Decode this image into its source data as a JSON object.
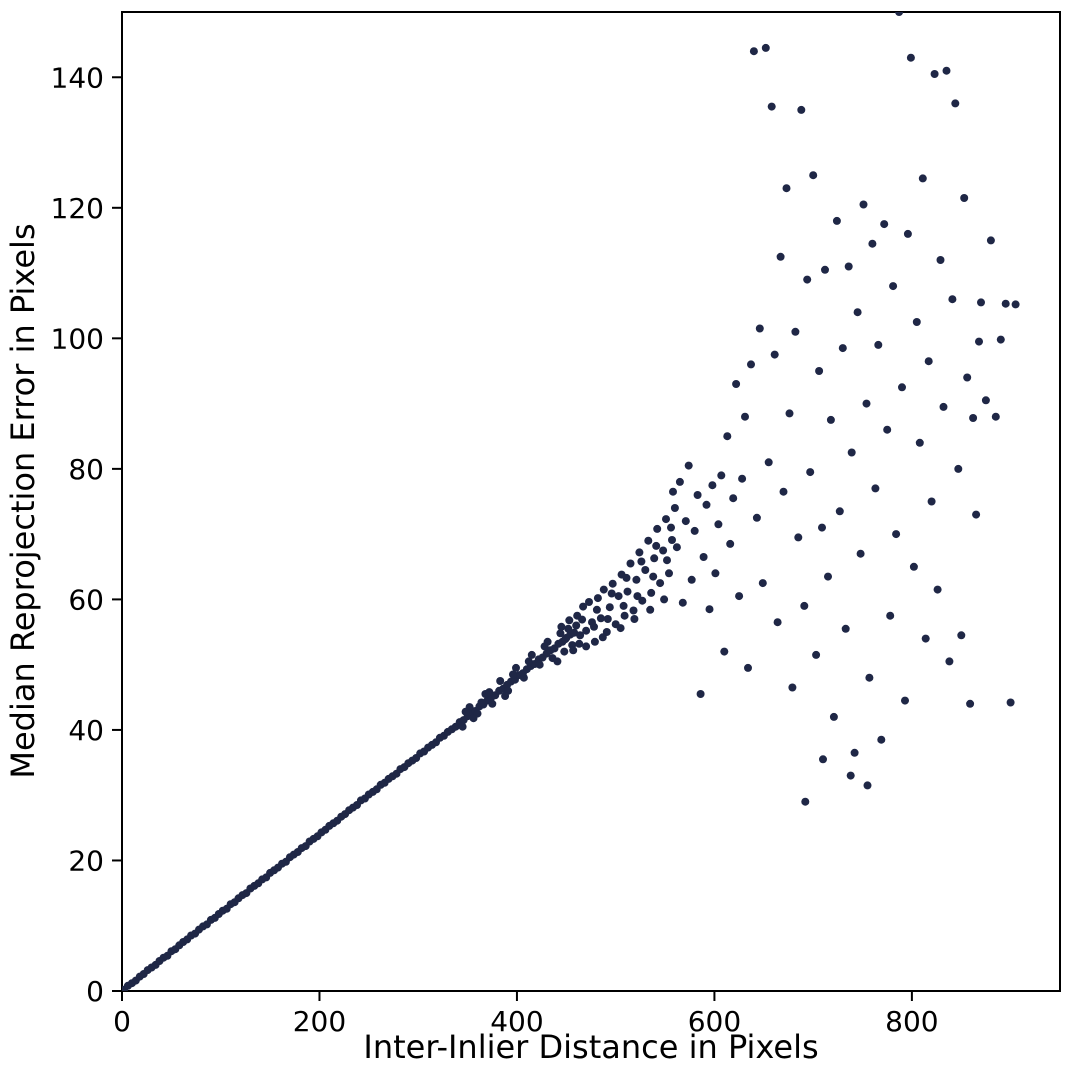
{
  "chart_data": {
    "type": "scatter",
    "title": "",
    "xlabel": "Inter-Inlier Distance in Pixels",
    "ylabel": "Median Reprojection Error in Pixels",
    "xlim": [
      0,
      950
    ],
    "ylim": [
      0,
      150
    ],
    "x_ticks": [
      0,
      200,
      400,
      600,
      800
    ],
    "y_ticks": [
      0,
      20,
      40,
      60,
      80,
      100,
      120,
      140
    ],
    "grid": false,
    "legend": null,
    "marker_color": "#1f2746",
    "marker_radius": 4,
    "axis_color": "#000000",
    "points": [
      [
        2,
        0.2
      ],
      [
        6,
        0.8
      ],
      [
        10,
        1.2
      ],
      [
        14,
        1.6
      ],
      [
        18,
        2.2
      ],
      [
        22,
        2.6
      ],
      [
        26,
        3.2
      ],
      [
        30,
        3.6
      ],
      [
        34,
        4.0
      ],
      [
        38,
        4.6
      ],
      [
        42,
        5.1
      ],
      [
        46,
        5.4
      ],
      [
        50,
        6.1
      ],
      [
        54,
        6.4
      ],
      [
        58,
        7.0
      ],
      [
        62,
        7.5
      ],
      [
        66,
        7.9
      ],
      [
        70,
        8.5
      ],
      [
        74,
        8.8
      ],
      [
        78,
        9.4
      ],
      [
        82,
        9.9
      ],
      [
        86,
        10.2
      ],
      [
        90,
        10.9
      ],
      [
        94,
        11.2
      ],
      [
        98,
        11.8
      ],
      [
        102,
        12.3
      ],
      [
        106,
        12.6
      ],
      [
        110,
        13.3
      ],
      [
        114,
        13.6
      ],
      [
        118,
        14.2
      ],
      [
        122,
        14.7
      ],
      [
        126,
        15.0
      ],
      [
        130,
        15.7
      ],
      [
        134,
        16.1
      ],
      [
        138,
        16.5
      ],
      [
        142,
        17.1
      ],
      [
        146,
        17.4
      ],
      [
        150,
        18.1
      ],
      [
        154,
        18.5
      ],
      [
        158,
        18.9
      ],
      [
        162,
        19.5
      ],
      [
        166,
        19.8
      ],
      [
        170,
        20.5
      ],
      [
        174,
        20.9
      ],
      [
        178,
        21.3
      ],
      [
        182,
        21.9
      ],
      [
        186,
        22.2
      ],
      [
        190,
        22.9
      ],
      [
        194,
        23.3
      ],
      [
        198,
        23.7
      ],
      [
        202,
        24.3
      ],
      [
        206,
        24.7
      ],
      [
        210,
        25.3
      ],
      [
        214,
        25.7
      ],
      [
        218,
        26.1
      ],
      [
        222,
        26.7
      ],
      [
        226,
        27.1
      ],
      [
        230,
        27.7
      ],
      [
        234,
        28.1
      ],
      [
        238,
        28.5
      ],
      [
        242,
        29.2
      ],
      [
        246,
        29.5
      ],
      [
        250,
        30.1
      ],
      [
        254,
        30.5
      ],
      [
        258,
        30.9
      ],
      [
        262,
        31.6
      ],
      [
        266,
        31.9
      ],
      [
        270,
        32.5
      ],
      [
        274,
        32.9
      ],
      [
        278,
        33.3
      ],
      [
        282,
        34.0
      ],
      [
        286,
        34.3
      ],
      [
        290,
        34.9
      ],
      [
        294,
        35.3
      ],
      [
        298,
        35.7
      ],
      [
        302,
        36.4
      ],
      [
        306,
        36.7
      ],
      [
        310,
        37.3
      ],
      [
        314,
        37.7
      ],
      [
        318,
        38.1
      ],
      [
        322,
        38.8
      ],
      [
        326,
        39.1
      ],
      [
        330,
        39.7
      ],
      [
        334,
        40.1
      ],
      [
        338,
        40.5
      ],
      [
        342,
        41.2
      ],
      [
        346,
        41.5
      ],
      [
        350,
        42.1
      ],
      [
        354,
        42.6
      ],
      [
        358,
        42.9
      ],
      [
        362,
        43.6
      ],
      [
        366,
        43.9
      ],
      [
        370,
        44.5
      ],
      [
        374,
        45.0
      ],
      [
        378,
        45.3
      ],
      [
        382,
        46.0
      ],
      [
        386,
        46.3
      ],
      [
        390,
        46.9
      ],
      [
        394,
        47.4
      ],
      [
        398,
        47.7
      ],
      [
        402,
        48.4
      ],
      [
        406,
        48.7
      ],
      [
        410,
        49.3
      ],
      [
        414,
        49.8
      ],
      [
        418,
        50.1
      ],
      [
        422,
        50.8
      ],
      [
        426,
        51.1
      ],
      [
        430,
        51.7
      ],
      [
        434,
        52.2
      ],
      [
        438,
        52.5
      ],
      [
        442,
        53.2
      ],
      [
        446,
        53.5
      ],
      [
        450,
        54.1
      ],
      [
        454,
        54.6
      ],
      [
        458,
        54.9
      ],
      [
        345,
        40.5
      ],
      [
        352,
        43.5
      ],
      [
        360,
        42.5
      ],
      [
        368,
        45.5
      ],
      [
        375,
        44.0
      ],
      [
        383,
        47.5
      ],
      [
        391,
        46.0
      ],
      [
        399,
        49.5
      ],
      [
        407,
        48.0
      ],
      [
        415,
        51.5
      ],
      [
        423,
        50.0
      ],
      [
        431,
        53.5
      ],
      [
        436,
        51.0
      ],
      [
        444,
        54.8
      ],
      [
        448,
        52.0
      ],
      [
        452,
        55.5
      ],
      [
        456,
        53.0
      ],
      [
        460,
        56.0
      ],
      [
        428,
        52.8
      ],
      [
        412,
        50.5
      ],
      [
        396,
        48.5
      ],
      [
        388,
        45.2
      ],
      [
        372,
        45.8
      ],
      [
        364,
        44.2
      ],
      [
        356,
        41.8
      ],
      [
        348,
        42.8
      ],
      [
        441,
        50.5
      ],
      [
        445,
        55.8
      ],
      [
        449,
        53.9
      ],
      [
        453,
        56.8
      ],
      [
        457,
        52.2
      ],
      [
        461,
        57.5
      ],
      [
        464,
        54.5
      ],
      [
        467,
        58.9
      ],
      [
        470,
        55.2
      ],
      [
        473,
        59.6
      ],
      [
        476,
        56.5
      ],
      [
        479,
        53.5
      ],
      [
        482,
        60.2
      ],
      [
        485,
        57.1
      ],
      [
        488,
        61.5
      ],
      [
        491,
        55.0
      ],
      [
        494,
        58.8
      ],
      [
        497,
        62.4
      ],
      [
        500,
        56.2
      ],
      [
        503,
        60.5
      ],
      [
        506,
        63.8
      ],
      [
        509,
        57.5
      ],
      [
        512,
        61.2
      ],
      [
        515,
        65.5
      ],
      [
        518,
        58.3
      ],
      [
        521,
        63.0
      ],
      [
        524,
        67.2
      ],
      [
        527,
        59.8
      ],
      [
        530,
        64.5
      ],
      [
        533,
        69.0
      ],
      [
        536,
        61.0
      ],
      [
        539,
        66.3
      ],
      [
        542,
        70.8
      ],
      [
        545,
        62.5
      ],
      [
        548,
        67.5
      ],
      [
        551,
        72.3
      ],
      [
        554,
        64.0
      ],
      [
        557,
        69.1
      ],
      [
        560,
        74.0
      ],
      [
        463,
        53.2
      ],
      [
        478,
        55.8
      ],
      [
        492,
        57.0
      ],
      [
        508,
        59.0
      ],
      [
        522,
        60.5
      ],
      [
        538,
        63.5
      ],
      [
        552,
        66.0
      ],
      [
        466,
        56.9
      ],
      [
        481,
        58.4
      ],
      [
        496,
        60.9
      ],
      [
        511,
        63.3
      ],
      [
        526,
        65.8
      ],
      [
        541,
        68.2
      ],
      [
        556,
        71.0
      ],
      [
        470,
        52.8
      ],
      [
        487,
        54.2
      ],
      [
        505,
        55.6
      ],
      [
        519,
        57.0
      ],
      [
        535,
        58.4
      ],
      [
        549,
        60.0
      ],
      [
        558,
        76.5
      ],
      [
        562,
        68.0
      ],
      [
        565,
        78.0
      ],
      [
        568,
        59.5
      ],
      [
        571,
        72.0
      ],
      [
        574,
        80.5
      ],
      [
        577,
        63.0
      ],
      [
        580,
        70.5
      ],
      [
        583,
        76.0
      ],
      [
        586,
        45.5
      ],
      [
        589,
        66.5
      ],
      [
        592,
        74.5
      ],
      [
        595,
        58.5
      ],
      [
        598,
        77.5
      ],
      [
        601,
        64.0
      ],
      [
        604,
        71.5
      ],
      [
        607,
        79.0
      ],
      [
        610,
        52.0
      ],
      [
        613,
        85.0
      ],
      [
        616,
        68.5
      ],
      [
        619,
        75.5
      ],
      [
        622,
        93.0
      ],
      [
        625,
        60.5
      ],
      [
        628,
        78.5
      ],
      [
        631,
        88.0
      ],
      [
        634,
        49.5
      ],
      [
        637,
        96.0
      ],
      [
        640,
        144.0
      ],
      [
        643,
        72.5
      ],
      [
        646,
        101.5
      ],
      [
        649,
        62.5
      ],
      [
        652,
        144.5
      ],
      [
        655,
        81.0
      ],
      [
        658,
        135.5
      ],
      [
        661,
        97.5
      ],
      [
        664,
        56.5
      ],
      [
        667,
        112.5
      ],
      [
        670,
        76.5
      ],
      [
        673,
        123.0
      ],
      [
        676,
        88.5
      ],
      [
        679,
        46.5
      ],
      [
        682,
        101.0
      ],
      [
        685,
        69.5
      ],
      [
        688,
        135.0
      ],
      [
        691,
        59.0
      ],
      [
        694,
        109.0
      ],
      [
        697,
        79.5
      ],
      [
        700,
        125.0
      ],
      [
        703,
        51.5
      ],
      [
        706,
        95.0
      ],
      [
        709,
        71.0
      ],
      [
        712,
        110.5
      ],
      [
        715,
        63.5
      ],
      [
        718,
        87.5
      ],
      [
        721,
        42.0
      ],
      [
        724,
        118.0
      ],
      [
        727,
        73.5
      ],
      [
        730,
        98.5
      ],
      [
        733,
        55.5
      ],
      [
        736,
        111.0
      ],
      [
        739,
        82.5
      ],
      [
        742,
        36.5
      ],
      [
        745,
        104.0
      ],
      [
        748,
        67.0
      ],
      [
        751,
        120.5
      ],
      [
        754,
        90.0
      ],
      [
        757,
        48.0
      ],
      [
        760,
        114.5
      ],
      [
        763,
        77.0
      ],
      [
        766,
        99.0
      ],
      [
        769,
        38.5
      ],
      [
        772,
        117.5
      ],
      [
        775,
        86.0
      ],
      [
        778,
        57.5
      ],
      [
        781,
        108.0
      ],
      [
        784,
        70.0
      ],
      [
        787,
        150.0
      ],
      [
        790,
        92.5
      ],
      [
        793,
        44.5
      ],
      [
        796,
        116.0
      ],
      [
        799,
        143.0
      ],
      [
        802,
        65.0
      ],
      [
        805,
        102.5
      ],
      [
        808,
        84.0
      ],
      [
        811,
        124.5
      ],
      [
        814,
        54.0
      ],
      [
        817,
        96.5
      ],
      [
        820,
        75.0
      ],
      [
        823,
        140.5
      ],
      [
        826,
        61.5
      ],
      [
        829,
        112.0
      ],
      [
        832,
        89.5
      ],
      [
        835,
        141.0
      ],
      [
        838,
        50.5
      ],
      [
        841,
        106.0
      ],
      [
        844,
        136.0
      ],
      [
        847,
        80.0
      ],
      [
        850,
        54.5
      ],
      [
        853,
        121.5
      ],
      [
        856,
        94.0
      ],
      [
        859,
        44.0
      ],
      [
        862,
        87.8
      ],
      [
        865,
        73.0
      ],
      [
        868,
        99.5
      ],
      [
        870,
        105.5
      ],
      [
        875,
        90.5
      ],
      [
        880,
        115.0
      ],
      [
        885,
        88.0
      ],
      [
        890,
        99.8
      ],
      [
        895,
        105.3
      ],
      [
        900,
        44.2
      ],
      [
        905,
        105.2
      ],
      [
        692,
        29.0
      ],
      [
        755,
        31.5
      ],
      [
        738,
        33.0
      ],
      [
        710,
        35.5
      ]
    ]
  }
}
